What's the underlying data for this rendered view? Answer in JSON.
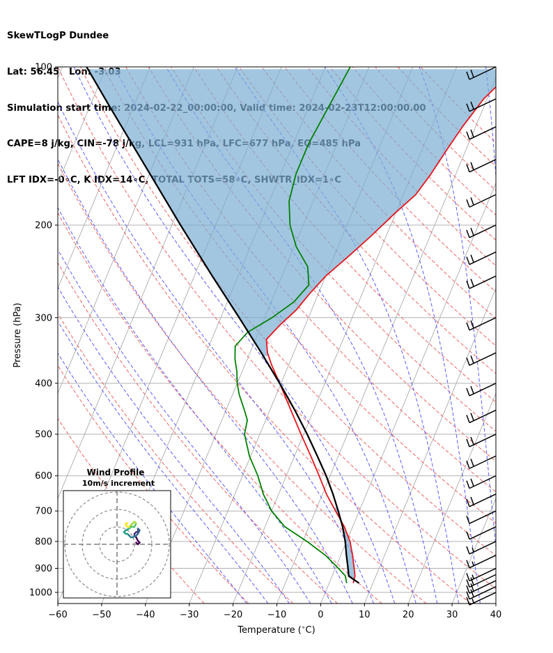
{
  "header": {
    "line1": "SkewTLogP Dundee",
    "line2": "Lat: 56.45   Lon: -3.03",
    "line3": "Simulation start time: 2024-02-22_00:00:00, Valid time: 2024-02-23T12:00:00.00",
    "line4": "CAPE=8 j/kg, CIN=-78 j/kg, LCL=931 hPa, LFC=677 hPa, EQ=485 hPa",
    "line5": "LFT IDX=-0∘C, K IDX=14∘C, TOTAL TOTS=58∘C, SHWTR_IDX=1∘C"
  },
  "colors": {
    "temperature": "#e8141a",
    "dewpoint": "#008000",
    "parcel": "#000000",
    "cape_fill": "#7aaed3",
    "dry_adiabat": "#f06060",
    "moist_adiabat": "#5a5aff",
    "mixing_ratio": "#7a7a7a",
    "isotherm": "#aaaaaa",
    "hodo_ring": "#808080"
  },
  "chart_data": [
    {
      "type": "skewt",
      "xlabel": "Temperature ($^\\circ$C)",
      "ylabel": "Pressure (hPa)",
      "xlim": [
        -60,
        40
      ],
      "ylim": [
        1050,
        100
      ],
      "yscale": "log",
      "xticks": [
        "−60",
        "−50",
        "−40",
        "−30",
        "−20",
        "−10",
        "0",
        "10",
        "20",
        "30",
        "40"
      ],
      "xtick_values": [
        -60,
        -50,
        -40,
        -30,
        -20,
        -10,
        0,
        10,
        20,
        30,
        40
      ],
      "yticks": [
        "1000",
        "900",
        "800",
        "700",
        "600",
        "500",
        "400",
        "300",
        "200",
        "100"
      ],
      "ytick_values": [
        1000,
        900,
        800,
        700,
        600,
        500,
        400,
        300,
        200,
        100
      ],
      "grid": true,
      "skew_degC_per_decade": 50,
      "series": [
        {
          "role": "temperature",
          "points": [
            [
              960,
              5.5
            ],
            [
              930,
              5.2
            ],
            [
              900,
              4.3
            ],
            [
              850,
              2.7
            ],
            [
              800,
              0.8
            ],
            [
              750,
              -1.9
            ],
            [
              700,
              -5.4
            ],
            [
              650,
              -9.1
            ],
            [
              600,
              -12.5
            ],
            [
              550,
              -16.3
            ],
            [
              500,
              -20.6
            ],
            [
              450,
              -25.2
            ],
            [
              400,
              -30.3
            ],
            [
              370,
              -33.8
            ],
            [
              350,
              -36.0
            ],
            [
              330,
              -37.5
            ],
            [
              310,
              -35.8
            ],
            [
              290,
              -33.5
            ],
            [
              270,
              -32.0
            ],
            [
              250,
              -30.0
            ],
            [
              230,
              -26.8
            ],
            [
              210,
              -23.5
            ],
            [
              190,
              -20.2
            ],
            [
              175,
              -17.2
            ],
            [
              160,
              -15.7
            ],
            [
              145,
              -14.5
            ],
            [
              130,
              -13.0
            ],
            [
              115,
              -10.8
            ],
            [
              100,
              -6.3
            ]
          ]
        },
        {
          "role": "dewpoint",
          "points": [
            [
              960,
              4.0
            ],
            [
              930,
              3.0
            ],
            [
              900,
              0.7
            ],
            [
              850,
              -3.5
            ],
            [
              800,
              -9.0
            ],
            [
              750,
              -15.5
            ],
            [
              700,
              -20.0
            ],
            [
              650,
              -23.5
            ],
            [
              600,
              -26.5
            ],
            [
              550,
              -30.3
            ],
            [
              500,
              -33.5
            ],
            [
              470,
              -34.2
            ],
            [
              450,
              -35.8
            ],
            [
              420,
              -38.5
            ],
            [
              400,
              -40.0
            ],
            [
              380,
              -41.2
            ],
            [
              360,
              -42.8
            ],
            [
              340,
              -44.0
            ],
            [
              320,
              -42.5
            ],
            [
              300,
              -38.3
            ],
            [
              280,
              -34.8
            ],
            [
              260,
              -33.0
            ],
            [
              240,
              -35.0
            ],
            [
              220,
              -39.5
            ],
            [
              200,
              -43.0
            ],
            [
              180,
              -45.5
            ],
            [
              160,
              -46.5
            ],
            [
              140,
              -46.5
            ],
            [
              120,
              -45.5
            ],
            [
              100,
              -44.3
            ]
          ]
        },
        {
          "role": "parcel",
          "points": [
            [
              960,
              6.8
            ],
            [
              931,
              3.8
            ],
            [
              900,
              2.9
            ],
            [
              850,
              1.3
            ],
            [
              800,
              -0.3
            ],
            [
              750,
              -2.3
            ],
            [
              700,
              -4.8
            ],
            [
              650,
              -7.6
            ],
            [
              600,
              -10.9
            ],
            [
              550,
              -14.8
            ],
            [
              500,
              -19.2
            ],
            [
              450,
              -24.3
            ],
            [
              400,
              -30.3
            ],
            [
              350,
              -37.4
            ],
            [
              300,
              -45.8
            ],
            [
              250,
              -55.9
            ],
            [
              200,
              -68.0
            ],
            [
              150,
              -83.2
            ],
            [
              120,
              -95.0
            ],
            [
              100,
              -104.5
            ]
          ]
        }
      ],
      "annotations": {
        "cape_shaded": true,
        "wind_barbs": {
          "pressures": [
            1000,
            975,
            950,
            925,
            900,
            850,
            800,
            750,
            700,
            650,
            600,
            550,
            500,
            450,
            400,
            350,
            300,
            250,
            225,
            200,
            175,
            150,
            130,
            115,
            100
          ],
          "speed_kt": [
            15,
            20,
            20,
            20,
            15,
            15,
            15,
            10,
            10,
            20,
            20,
            20,
            20,
            20,
            20,
            20,
            20,
            20,
            20,
            20,
            20,
            20,
            20,
            20,
            20
          ]
        }
      }
    },
    {
      "type": "hodograph",
      "title": "Wind Profile",
      "subtitle": "10m/s increment",
      "rings": [
        10,
        20,
        30
      ],
      "points": [
        [
          11,
          1
        ],
        [
          12,
          0
        ],
        [
          13,
          1
        ],
        [
          12,
          2
        ],
        [
          11,
          4
        ],
        [
          10,
          5
        ],
        [
          10,
          6
        ],
        [
          11,
          7
        ],
        [
          12,
          7
        ],
        [
          12,
          8
        ],
        [
          12,
          9
        ],
        [
          13,
          8
        ],
        [
          12,
          6
        ],
        [
          11,
          5
        ],
        [
          9,
          4
        ],
        [
          8,
          4
        ],
        [
          7,
          5
        ],
        [
          6,
          6
        ],
        [
          5,
          6
        ],
        [
          4,
          7
        ],
        [
          5,
          8
        ],
        [
          7,
          9
        ],
        [
          8,
          10
        ],
        [
          9,
          10
        ],
        [
          10,
          10
        ],
        [
          11,
          12
        ],
        [
          10,
          13
        ],
        [
          9,
          12
        ],
        [
          8,
          11
        ],
        [
          7,
          10
        ],
        [
          6,
          10
        ],
        [
          5,
          11
        ],
        [
          5,
          12
        ],
        [
          6,
          12
        ]
      ]
    }
  ]
}
